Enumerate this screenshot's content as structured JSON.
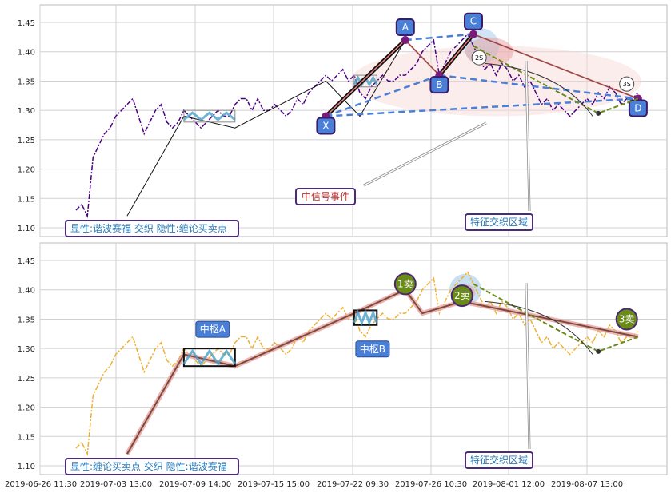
{
  "chart_data": [
    {
      "type": "line",
      "panel": "top",
      "ylim": [
        1.085,
        1.48
      ],
      "yticks": [
        1.1,
        1.15,
        1.2,
        1.25,
        1.3,
        1.35,
        1.4,
        1.45
      ],
      "xlim": [
        0,
        100
      ],
      "grid": true,
      "caption": "显性:谐波赛福 交织 隐性:缠论买卖点",
      "price_series": {
        "color": "#4b0082",
        "x": [
          0,
          1,
          2,
          3,
          4,
          5,
          6,
          7,
          8,
          9,
          10,
          11,
          12,
          13,
          14,
          15,
          16,
          17,
          18,
          19,
          20,
          21,
          22,
          23,
          24,
          25,
          26,
          27,
          28,
          29,
          30,
          31,
          32,
          33,
          34,
          35,
          36,
          37,
          38,
          39,
          40,
          41,
          42,
          43,
          44,
          45,
          46,
          47,
          48,
          49,
          50,
          51,
          52,
          53,
          54,
          55,
          56,
          57,
          58,
          59,
          60,
          61,
          62,
          63,
          64,
          65,
          66,
          67,
          68,
          69,
          70,
          71,
          72,
          73,
          74,
          75,
          76,
          77,
          78,
          79,
          80,
          81,
          82,
          83,
          84,
          85,
          86,
          87,
          88,
          89,
          90,
          91,
          92,
          93,
          94,
          95,
          96,
          97,
          98,
          99
        ],
        "y": [
          1.13,
          1.14,
          1.12,
          1.22,
          1.24,
          1.26,
          1.27,
          1.29,
          1.3,
          1.31,
          1.32,
          1.29,
          1.26,
          1.28,
          1.3,
          1.31,
          1.28,
          1.27,
          1.28,
          1.3,
          1.29,
          1.28,
          1.27,
          1.28,
          1.29,
          1.3,
          1.29,
          1.29,
          1.31,
          1.32,
          1.32,
          1.3,
          1.32,
          1.3,
          1.3,
          1.31,
          1.3,
          1.29,
          1.3,
          1.32,
          1.31,
          1.33,
          1.34,
          1.35,
          1.36,
          1.35,
          1.36,
          1.37,
          1.35,
          1.36,
          1.33,
          1.32,
          1.34,
          1.35,
          1.36,
          1.35,
          1.35,
          1.36,
          1.36,
          1.37,
          1.38,
          1.4,
          1.41,
          1.42,
          1.36,
          1.38,
          1.4,
          1.41,
          1.42,
          1.43,
          1.41,
          1.39,
          1.37,
          1.38,
          1.36,
          1.38,
          1.37,
          1.35,
          1.36,
          1.34,
          1.35,
          1.33,
          1.31,
          1.32,
          1.3,
          1.31,
          1.3,
          1.29,
          1.3,
          1.31,
          1.32,
          1.31,
          1.33,
          1.32,
          1.34,
          1.33,
          1.31,
          1.32,
          1.32,
          1.33
        ]
      },
      "stroke_segments": [
        {
          "x": [
            9,
            19,
            28,
            44,
            50,
            58,
            64,
            70,
            99
          ],
          "y": [
            1.12,
            1.29,
            1.27,
            1.35,
            1.29,
            1.42,
            1.36,
            1.43,
            1.32
          ]
        }
      ],
      "pivot_boxes": [
        {
          "x0": 19,
          "x1": 28,
          "y0": 1.28,
          "y1": 1.3
        },
        {
          "x0": 49,
          "x1": 53,
          "y0": 1.34,
          "y1": 1.36
        }
      ],
      "pattern_points": [
        {
          "label": "X",
          "x": 44,
          "y": 1.29
        },
        {
          "label": "A",
          "x": 58,
          "y": 1.42
        },
        {
          "label": "B",
          "x": 64,
          "y": 1.36
        },
        {
          "label": "C",
          "x": 70,
          "y": 1.43
        },
        {
          "label": "D",
          "x": 99,
          "y": 1.32
        }
      ],
      "markers": [
        {
          "label": "2S",
          "x": 71,
          "y": 1.39
        },
        {
          "label": "3S",
          "x": 97,
          "y": 1.345
        }
      ],
      "annotations": [
        {
          "text": "中信号事件"
        },
        {
          "text": "特征交织区域"
        }
      ]
    },
    {
      "type": "line",
      "panel": "bottom",
      "ylim": [
        1.085,
        1.48
      ],
      "yticks": [
        1.1,
        1.15,
        1.2,
        1.25,
        1.3,
        1.35,
        1.4,
        1.45
      ],
      "xlim": [
        0,
        100
      ],
      "grid": true,
      "caption": "显性:缠论买卖点 交织 隐性:谐波赛福",
      "price_series": {
        "color": "#f0b030",
        "x": [
          0,
          1,
          2,
          3,
          4,
          5,
          6,
          7,
          8,
          9,
          10,
          11,
          12,
          13,
          14,
          15,
          16,
          17,
          18,
          19,
          20,
          21,
          22,
          23,
          24,
          25,
          26,
          27,
          28,
          29,
          30,
          31,
          32,
          33,
          34,
          35,
          36,
          37,
          38,
          39,
          40,
          41,
          42,
          43,
          44,
          45,
          46,
          47,
          48,
          49,
          50,
          51,
          52,
          53,
          54,
          55,
          56,
          57,
          58,
          59,
          60,
          61,
          62,
          63,
          64,
          65,
          66,
          67,
          68,
          69,
          70,
          71,
          72,
          73,
          74,
          75,
          76,
          77,
          78,
          79,
          80,
          81,
          82,
          83,
          84,
          85,
          86,
          87,
          88,
          89,
          90,
          91,
          92,
          93,
          94,
          95,
          96,
          97,
          98,
          99
        ],
        "y": [
          1.13,
          1.14,
          1.12,
          1.22,
          1.24,
          1.26,
          1.27,
          1.29,
          1.3,
          1.31,
          1.32,
          1.29,
          1.26,
          1.28,
          1.3,
          1.31,
          1.28,
          1.27,
          1.28,
          1.3,
          1.29,
          1.28,
          1.27,
          1.28,
          1.29,
          1.3,
          1.29,
          1.29,
          1.31,
          1.32,
          1.32,
          1.3,
          1.32,
          1.3,
          1.3,
          1.31,
          1.3,
          1.29,
          1.3,
          1.32,
          1.31,
          1.33,
          1.34,
          1.35,
          1.36,
          1.35,
          1.36,
          1.37,
          1.35,
          1.36,
          1.33,
          1.32,
          1.34,
          1.35,
          1.36,
          1.35,
          1.35,
          1.36,
          1.36,
          1.37,
          1.38,
          1.4,
          1.41,
          1.42,
          1.36,
          1.38,
          1.4,
          1.41,
          1.42,
          1.43,
          1.41,
          1.39,
          1.37,
          1.38,
          1.36,
          1.38,
          1.37,
          1.35,
          1.36,
          1.34,
          1.35,
          1.33,
          1.31,
          1.32,
          1.3,
          1.31,
          1.3,
          1.29,
          1.3,
          1.31,
          1.32,
          1.31,
          1.33,
          1.32,
          1.34,
          1.33,
          1.31,
          1.32,
          1.32,
          1.33
        ]
      },
      "stroke_segments": [
        {
          "x": [
            9,
            19,
            28,
            49,
            58,
            61,
            68,
            99
          ],
          "y": [
            1.12,
            1.29,
            1.27,
            1.36,
            1.4,
            1.36,
            1.38,
            1.32
          ]
        }
      ],
      "pivot_boxes": [
        {
          "x0": 19,
          "x1": 28,
          "y0": 1.27,
          "y1": 1.3,
          "label": "中枢A"
        },
        {
          "x0": 49,
          "x1": 53,
          "y0": 1.34,
          "y1": 1.365,
          "label": "中枢B"
        }
      ],
      "markers": [
        {
          "label": "1卖",
          "x": 58,
          "y": 1.41
        },
        {
          "label": "2卖",
          "x": 68,
          "y": 1.39
        },
        {
          "label": "3卖",
          "x": 97,
          "y": 1.35
        }
      ],
      "annotations": [
        {
          "text": "特征交织区域"
        }
      ]
    }
  ],
  "x_axis": {
    "tick_labels": [
      "2019-06-26 11:30",
      "2019-07-03 13:00",
      "2019-07-09 14:00",
      "2019-07-15 15:00",
      "2019-07-22 09:30",
      "2019-07-26 10:30",
      "2019-08-01 12:00",
      "2019-08-07 13:00"
    ],
    "tick_x": [
      0,
      12.5,
      25,
      37.5,
      50,
      62.5,
      75,
      87.5
    ]
  }
}
